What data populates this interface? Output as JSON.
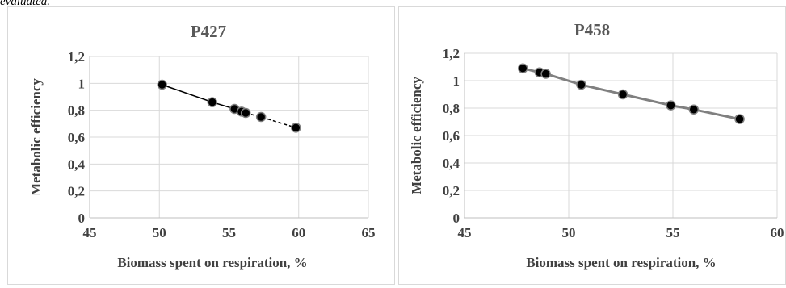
{
  "page_fragment": "evaluated.",
  "chart_data": [
    {
      "type": "scatter",
      "title": "P427",
      "xlabel": "Biomass spent on respiration, %",
      "ylabel": "Metabolic efficiency",
      "xlim": [
        45,
        65
      ],
      "ylim": [
        0,
        1.2
      ],
      "x_ticks": [
        "45",
        "50",
        "55",
        "60",
        "65"
      ],
      "y_ticks": [
        "0",
        "0,2",
        "0,4",
        "0,6",
        "0,8",
        "1",
        "1,2"
      ],
      "grid": true,
      "legend": "none",
      "point_color": "#000000",
      "line_color": "#000000",
      "line_style": "solid then dashed",
      "series": [
        {
          "x": [
            50.2,
            53.8,
            55.4,
            55.9,
            56.2,
            57.3,
            59.8
          ],
          "y": [
            0.99,
            0.86,
            0.81,
            0.79,
            0.78,
            0.75,
            0.67
          ]
        }
      ]
    },
    {
      "type": "scatter",
      "title": "P458",
      "xlabel": "Biomass spent on respiration, %",
      "ylabel": "Metabolic efficiency",
      "xlim": [
        45,
        60
      ],
      "ylim": [
        0,
        1.2
      ],
      "x_ticks": [
        "45",
        "50",
        "55",
        "60"
      ],
      "y_ticks": [
        "0",
        "0,2",
        "0,4",
        "0,6",
        "0,8",
        "1",
        "1,2"
      ],
      "grid": true,
      "legend": "none",
      "point_color": "#000000",
      "line_color": "#808080",
      "line_style": "solid",
      "series": [
        {
          "x": [
            47.8,
            48.6,
            48.9,
            50.6,
            52.6,
            54.9,
            56.0,
            58.2
          ],
          "y": [
            1.09,
            1.06,
            1.05,
            0.97,
            0.9,
            0.82,
            0.79,
            0.72
          ]
        }
      ]
    }
  ]
}
